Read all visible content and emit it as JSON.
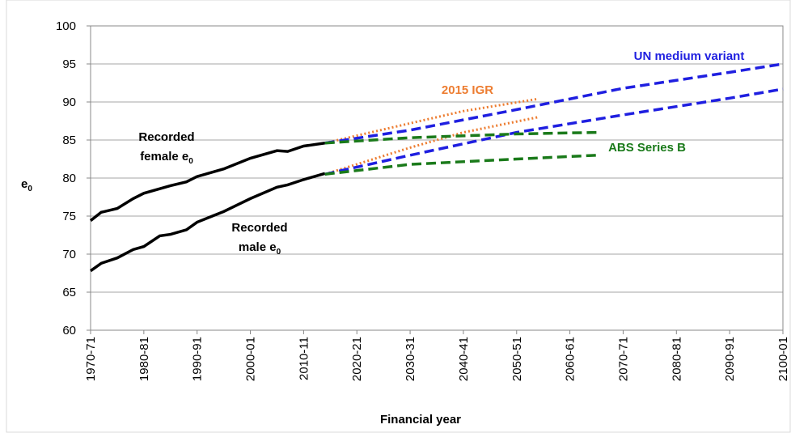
{
  "chart_data": {
    "type": "line",
    "x_label": "Financial year",
    "y_label": {
      "text": "e",
      "sub": "0"
    },
    "xlim": [
      1970,
      2100
    ],
    "xticks": [
      {
        "value": 1970,
        "label": "1970-71"
      },
      {
        "value": 1980,
        "label": "1980-81"
      },
      {
        "value": 1990,
        "label": "1990-91"
      },
      {
        "value": 2000,
        "label": "2000-01"
      },
      {
        "value": 2010,
        "label": "2010-11"
      },
      {
        "value": 2020,
        "label": "2020-21"
      },
      {
        "value": 2030,
        "label": "2030-31"
      },
      {
        "value": 2040,
        "label": "2040-41"
      },
      {
        "value": 2050,
        "label": "2050-51"
      },
      {
        "value": 2060,
        "label": "2060-61"
      },
      {
        "value": 2070,
        "label": "2070-71"
      },
      {
        "value": 2080,
        "label": "2080-81"
      },
      {
        "value": 2090,
        "label": "2090-91"
      },
      {
        "value": 2100,
        "label": "2100-01"
      }
    ],
    "ylim": [
      60,
      100
    ],
    "yticks": [
      60,
      65,
      70,
      75,
      80,
      85,
      90,
      95,
      100
    ],
    "grid": true,
    "series": [
      {
        "color": "#000000",
        "style": "solid",
        "x": [
          1970,
          1972,
          1975,
          1978,
          1980,
          1985,
          1988,
          1990,
          1995,
          2000,
          2005,
          2007,
          2010,
          2014
        ],
        "values": [
          74.4,
          75.5,
          76.0,
          77.3,
          78.0,
          79.0,
          79.5,
          80.2,
          81.2,
          82.6,
          83.6,
          83.5,
          84.2,
          84.6
        ]
      },
      {
        "color": "#000000",
        "style": "solid",
        "x": [
          1970,
          1972,
          1975,
          1978,
          1980,
          1983,
          1985,
          1988,
          1990,
          1995,
          2000,
          2005,
          2007,
          2010,
          2014
        ],
        "values": [
          67.8,
          68.8,
          69.5,
          70.6,
          71.0,
          72.4,
          72.6,
          73.2,
          74.2,
          75.6,
          77.3,
          78.8,
          79.1,
          79.8,
          80.6
        ]
      },
      {
        "color": "#ed7d31",
        "style": "dotted",
        "x": [
          2014,
          2030,
          2040,
          2054
        ],
        "values": [
          84.6,
          87.2,
          88.8,
          90.4
        ]
      },
      {
        "color": "#ed7d31",
        "style": "dotted",
        "x": [
          2014,
          2030,
          2040,
          2054
        ],
        "values": [
          80.5,
          84.0,
          86.0,
          88.0
        ]
      },
      {
        "color": "#1f1fe0",
        "style": "dashed",
        "x": [
          2014,
          2030,
          2050,
          2070,
          2090,
          2100
        ],
        "values": [
          84.6,
          86.3,
          89.0,
          91.8,
          93.9,
          95.0
        ]
      },
      {
        "color": "#1f1fe0",
        "style": "dashed",
        "x": [
          2014,
          2030,
          2050,
          2070,
          2090,
          2100
        ],
        "values": [
          80.5,
          83.0,
          86.0,
          88.3,
          90.5,
          91.7
        ]
      },
      {
        "color": "#1a7a1a",
        "style": "dashed",
        "x": [
          2014,
          2030,
          2050,
          2065
        ],
        "values": [
          84.6,
          85.3,
          85.8,
          86.0
        ]
      },
      {
        "color": "#1a7a1a",
        "style": "dashed",
        "x": [
          2014,
          2030,
          2050,
          2065
        ],
        "values": [
          80.5,
          81.8,
          82.5,
          83.0
        ]
      }
    ],
    "annotations": [
      {
        "lines": [
          "Recorded",
          "female e"
        ],
        "sub": "0",
        "color": "#000000"
      },
      {
        "lines": [
          "Recorded",
          "male e"
        ],
        "sub": "0",
        "color": "#000000"
      },
      {
        "lines": [
          "2015 IGR"
        ],
        "color": "#ed7d31"
      },
      {
        "lines": [
          "UN medium variant"
        ],
        "color": "#1f1fe0"
      },
      {
        "lines": [
          "ABS Series B"
        ],
        "color": "#1a7a1a"
      }
    ]
  }
}
